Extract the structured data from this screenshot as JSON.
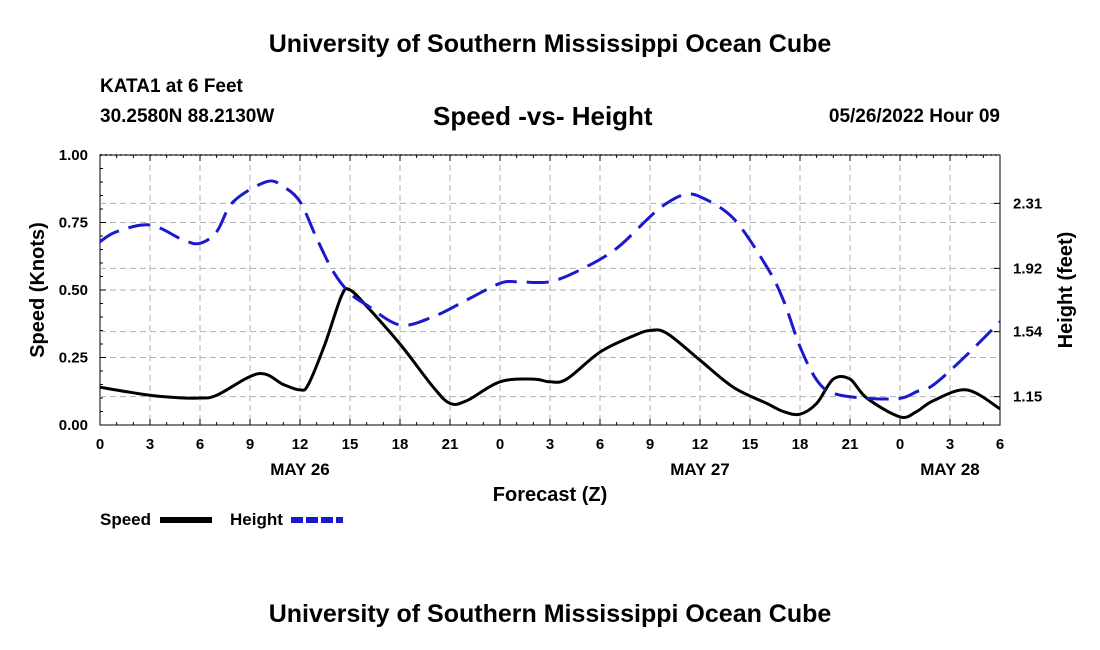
{
  "header": {
    "title": "University of Southern Mississippi Ocean Cube",
    "station": "KATA1 at 6 Feet",
    "coordinates": "30.2580N  88.2130W",
    "subtitle": "Speed -vs- Height",
    "datestamp": "05/26/2022 Hour 09"
  },
  "footer": {
    "title": "University of Southern Mississippi Ocean Cube"
  },
  "colors": {
    "speed": "#000000",
    "height": "#1a1acc",
    "grid": "#b0b0b0"
  },
  "chart_data": {
    "type": "line",
    "title": "Speed -vs- Height",
    "xlabel": "Forecast (Z)",
    "ylabel": "Speed (Knots)",
    "y2label": "Height (feet)",
    "x_range": [
      0,
      54
    ],
    "x_ticks": [
      0,
      3,
      6,
      9,
      12,
      15,
      18,
      21,
      24,
      27,
      30,
      33,
      36,
      39,
      42,
      45,
      48,
      51,
      54
    ],
    "x_tick_labels": [
      "0",
      "3",
      "6",
      "9",
      "12",
      "15",
      "18",
      "21",
      "0",
      "3",
      "6",
      "9",
      "12",
      "15",
      "18",
      "21",
      "0",
      "3",
      "6"
    ],
    "date_labels": [
      {
        "x": 12,
        "label": "MAY 26"
      },
      {
        "x": 36,
        "label": "MAY 27"
      },
      {
        "x": 51,
        "label": "MAY 28"
      }
    ],
    "ylim": [
      0,
      1
    ],
    "y_ticks": [
      0,
      0.25,
      0.5,
      0.75,
      1
    ],
    "y_tick_labels": [
      "0.00",
      "0.25",
      "0.50",
      "0.75",
      "1.00"
    ],
    "y2lim": [
      0.98,
      2.6
    ],
    "y2_ticks": [
      1.15,
      1.54,
      1.92,
      2.31
    ],
    "y2_tick_labels": [
      "1.15",
      "1.54",
      "1.92",
      "2.31"
    ],
    "legend": [
      {
        "name": "Speed",
        "style": "solid"
      },
      {
        "name": "Height",
        "style": "dashed"
      }
    ],
    "legend_position": "bottom-left",
    "series": [
      {
        "name": "Speed",
        "axis": "left",
        "style": "solid",
        "x": [
          0,
          3,
          5,
          6,
          7,
          9.5,
          11,
          12,
          12.5,
          13.5,
          14.5,
          15,
          16,
          18,
          20,
          21,
          22,
          24,
          26,
          27,
          28,
          30,
          32,
          33,
          34,
          36,
          38,
          40,
          41,
          42,
          43,
          44,
          45,
          46,
          48,
          49,
          50,
          52,
          54
        ],
        "values": [
          0.14,
          0.11,
          0.1,
          0.1,
          0.11,
          0.19,
          0.15,
          0.13,
          0.15,
          0.3,
          0.48,
          0.5,
          0.44,
          0.3,
          0.14,
          0.08,
          0.09,
          0.16,
          0.17,
          0.16,
          0.17,
          0.27,
          0.33,
          0.35,
          0.34,
          0.24,
          0.14,
          0.08,
          0.05,
          0.04,
          0.08,
          0.17,
          0.17,
          0.1,
          0.03,
          0.05,
          0.09,
          0.13,
          0.06
        ]
      },
      {
        "name": "Height",
        "axis": "right",
        "style": "dashed",
        "x": [
          0,
          1,
          3,
          5,
          6,
          7,
          8,
          10,
          11,
          12,
          13,
          14,
          15,
          16,
          18,
          20,
          22,
          24,
          25,
          27,
          29,
          31,
          33,
          34,
          35,
          36,
          38,
          40,
          41,
          42,
          43,
          44,
          46,
          48,
          49,
          50,
          52,
          54
        ],
        "values": [
          2.08,
          2.14,
          2.18,
          2.09,
          2.07,
          2.14,
          2.32,
          2.44,
          2.41,
          2.32,
          2.1,
          1.9,
          1.77,
          1.7,
          1.58,
          1.63,
          1.73,
          1.83,
          1.84,
          1.84,
          1.92,
          2.04,
          2.23,
          2.31,
          2.36,
          2.35,
          2.22,
          1.93,
          1.73,
          1.45,
          1.25,
          1.17,
          1.14,
          1.14,
          1.18,
          1.22,
          1.4,
          1.6
        ]
      }
    ]
  }
}
